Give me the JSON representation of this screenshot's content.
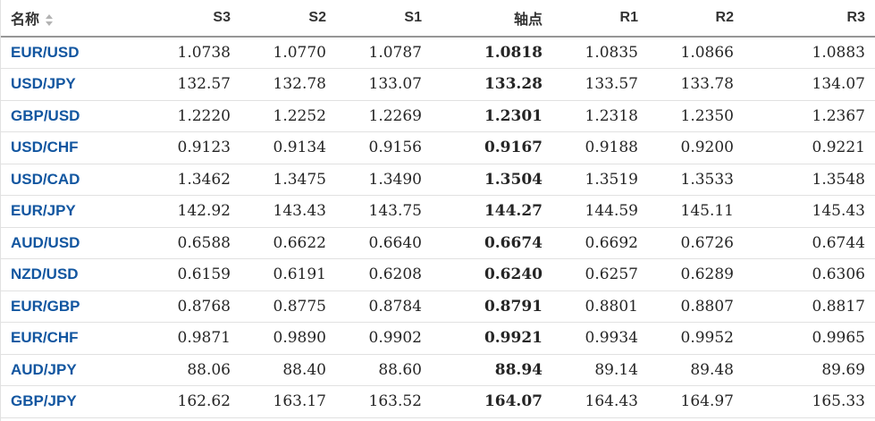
{
  "colors": {
    "link_blue": "#1256a0",
    "header_text": "#333333",
    "number_text": "#252525",
    "row_border": "#e1e1e1",
    "header_border": "#969696",
    "sort_icon": "#b3b3b3",
    "bg": "#ffffff"
  },
  "table": {
    "columns": [
      {
        "key": "name",
        "label": "名称",
        "sortable": true
      },
      {
        "key": "s3",
        "label": "S3"
      },
      {
        "key": "s2",
        "label": "S2"
      },
      {
        "key": "s1",
        "label": "S1"
      },
      {
        "key": "pivot",
        "label": "轴点"
      },
      {
        "key": "r1",
        "label": "R1"
      },
      {
        "key": "r2",
        "label": "R2"
      },
      {
        "key": "r3",
        "label": "R3"
      }
    ],
    "rows": [
      {
        "name": "EUR/USD",
        "s3": "1.0738",
        "s2": "1.0770",
        "s1": "1.0787",
        "pivot": "1.0818",
        "r1": "1.0835",
        "r2": "1.0866",
        "r3": "1.0883"
      },
      {
        "name": "USD/JPY",
        "s3": "132.57",
        "s2": "132.78",
        "s1": "133.07",
        "pivot": "133.28",
        "r1": "133.57",
        "r2": "133.78",
        "r3": "134.07"
      },
      {
        "name": "GBP/USD",
        "s3": "1.2220",
        "s2": "1.2252",
        "s1": "1.2269",
        "pivot": "1.2301",
        "r1": "1.2318",
        "r2": "1.2350",
        "r3": "1.2367"
      },
      {
        "name": "USD/CHF",
        "s3": "0.9123",
        "s2": "0.9134",
        "s1": "0.9156",
        "pivot": "0.9167",
        "r1": "0.9188",
        "r2": "0.9200",
        "r3": "0.9221"
      },
      {
        "name": "USD/CAD",
        "s3": "1.3462",
        "s2": "1.3475",
        "s1": "1.3490",
        "pivot": "1.3504",
        "r1": "1.3519",
        "r2": "1.3533",
        "r3": "1.3548"
      },
      {
        "name": "EUR/JPY",
        "s3": "142.92",
        "s2": "143.43",
        "s1": "143.75",
        "pivot": "144.27",
        "r1": "144.59",
        "r2": "145.11",
        "r3": "145.43"
      },
      {
        "name": "AUD/USD",
        "s3": "0.6588",
        "s2": "0.6622",
        "s1": "0.6640",
        "pivot": "0.6674",
        "r1": "0.6692",
        "r2": "0.6726",
        "r3": "0.6744"
      },
      {
        "name": "NZD/USD",
        "s3": "0.6159",
        "s2": "0.6191",
        "s1": "0.6208",
        "pivot": "0.6240",
        "r1": "0.6257",
        "r2": "0.6289",
        "r3": "0.6306"
      },
      {
        "name": "EUR/GBP",
        "s3": "0.8768",
        "s2": "0.8775",
        "s1": "0.8784",
        "pivot": "0.8791",
        "r1": "0.8801",
        "r2": "0.8807",
        "r3": "0.8817"
      },
      {
        "name": "EUR/CHF",
        "s3": "0.9871",
        "s2": "0.9890",
        "s1": "0.9902",
        "pivot": "0.9921",
        "r1": "0.9934",
        "r2": "0.9952",
        "r3": "0.9965"
      },
      {
        "name": "AUD/JPY",
        "s3": "88.06",
        "s2": "88.40",
        "s1": "88.60",
        "pivot": "88.94",
        "r1": "89.14",
        "r2": "89.48",
        "r3": "89.69"
      },
      {
        "name": "GBP/JPY",
        "s3": "162.62",
        "s2": "163.17",
        "s1": "163.52",
        "pivot": "164.07",
        "r1": "164.43",
        "r2": "164.97",
        "r3": "165.33"
      }
    ]
  }
}
